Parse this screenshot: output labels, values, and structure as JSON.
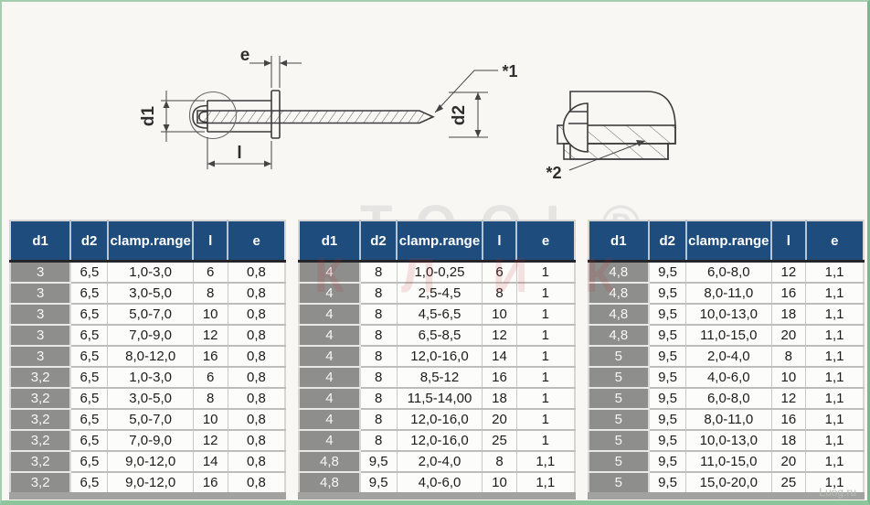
{
  "drawing": {
    "dim_e": "e",
    "dim_d1": "d1",
    "dim_d2": "d2",
    "dim_l": "l",
    "ref1": "*1",
    "ref2": "*2"
  },
  "watermark": {
    "big": "TOOL®",
    "red": "КЛИК",
    "corner": "Luog.ru"
  },
  "columns": [
    "d1",
    "d2",
    "clamp.range",
    "l",
    "e"
  ],
  "column_keys": [
    "d1",
    "d2",
    "clamp-range",
    "l",
    "e"
  ],
  "colors": {
    "header_bg": "#1e4c7c",
    "d1_column_bg": "#8e8e8c",
    "frame_green": "#8cc49c",
    "line_color": "#3c3c3c"
  },
  "tables": [
    {
      "rows": [
        [
          "3",
          "6,5",
          "1,0-3,0",
          "6",
          "0,8"
        ],
        [
          "3",
          "6,5",
          "3,0-5,0",
          "8",
          "0,8"
        ],
        [
          "3",
          "6,5",
          "5,0-7,0",
          "10",
          "0,8"
        ],
        [
          "3",
          "6,5",
          "7,0-9,0",
          "12",
          "0,8"
        ],
        [
          "3",
          "6,5",
          "8,0-12,0",
          "16",
          "0,8"
        ],
        [
          "3,2",
          "6,5",
          "1,0-3,0",
          "6",
          "0,8"
        ],
        [
          "3,2",
          "6,5",
          "3,0-5,0",
          "8",
          "0,8"
        ],
        [
          "3,2",
          "6,5",
          "5,0-7,0",
          "10",
          "0,8"
        ],
        [
          "3,2",
          "6,5",
          "7,0-9,0",
          "12",
          "0,8"
        ],
        [
          "3,2",
          "6,5",
          "9,0-12,0",
          "14",
          "0,8"
        ],
        [
          "3,2",
          "6,5",
          "9,0-12,0",
          "16",
          "0,8"
        ]
      ]
    },
    {
      "rows": [
        [
          "4",
          "8",
          "1,0-0,25",
          "6",
          "1"
        ],
        [
          "4",
          "8",
          "2,5-4,5",
          "8",
          "1"
        ],
        [
          "4",
          "8",
          "4,5-6,5",
          "10",
          "1"
        ],
        [
          "4",
          "8",
          "6,5-8,5",
          "12",
          "1"
        ],
        [
          "4",
          "8",
          "12,0-16,0",
          "14",
          "1"
        ],
        [
          "4",
          "8",
          "8,5-12",
          "16",
          "1"
        ],
        [
          "4",
          "8",
          "11,5-14,00",
          "18",
          "1"
        ],
        [
          "4",
          "8",
          "12,0-16,0",
          "20",
          "1"
        ],
        [
          "4",
          "8",
          "12,0-16,0",
          "25",
          "1"
        ],
        [
          "4,8",
          "9,5",
          "2,0-4,0",
          "8",
          "1,1"
        ],
        [
          "4,8",
          "9,5",
          "4,0-6,0",
          "10",
          "1,1"
        ]
      ]
    },
    {
      "rows": [
        [
          "4,8",
          "9,5",
          "6,0-8,0",
          "12",
          "1,1"
        ],
        [
          "4,8",
          "9,5",
          "8,0-11,0",
          "16",
          "1,1"
        ],
        [
          "4,8",
          "9,5",
          "10,0-13,0",
          "18",
          "1,1"
        ],
        [
          "4,8",
          "9,5",
          "11,0-15,0",
          "20",
          "1,1"
        ],
        [
          "5",
          "9,5",
          "2,0-4,0",
          "8",
          "1,1"
        ],
        [
          "5",
          "9,5",
          "4,0-6,0",
          "10",
          "1,1"
        ],
        [
          "5",
          "9,5",
          "6,0-8,0",
          "12",
          "1,1"
        ],
        [
          "5",
          "9,5",
          "8,0-11,0",
          "16",
          "1,1"
        ],
        [
          "5",
          "9,5",
          "10,0-13,0",
          "18",
          "1,1"
        ],
        [
          "5",
          "9,5",
          "11,0-15,0",
          "20",
          "1,1"
        ],
        [
          "5",
          "9,5",
          "15,0-20,0",
          "25",
          "1,1"
        ]
      ]
    }
  ]
}
